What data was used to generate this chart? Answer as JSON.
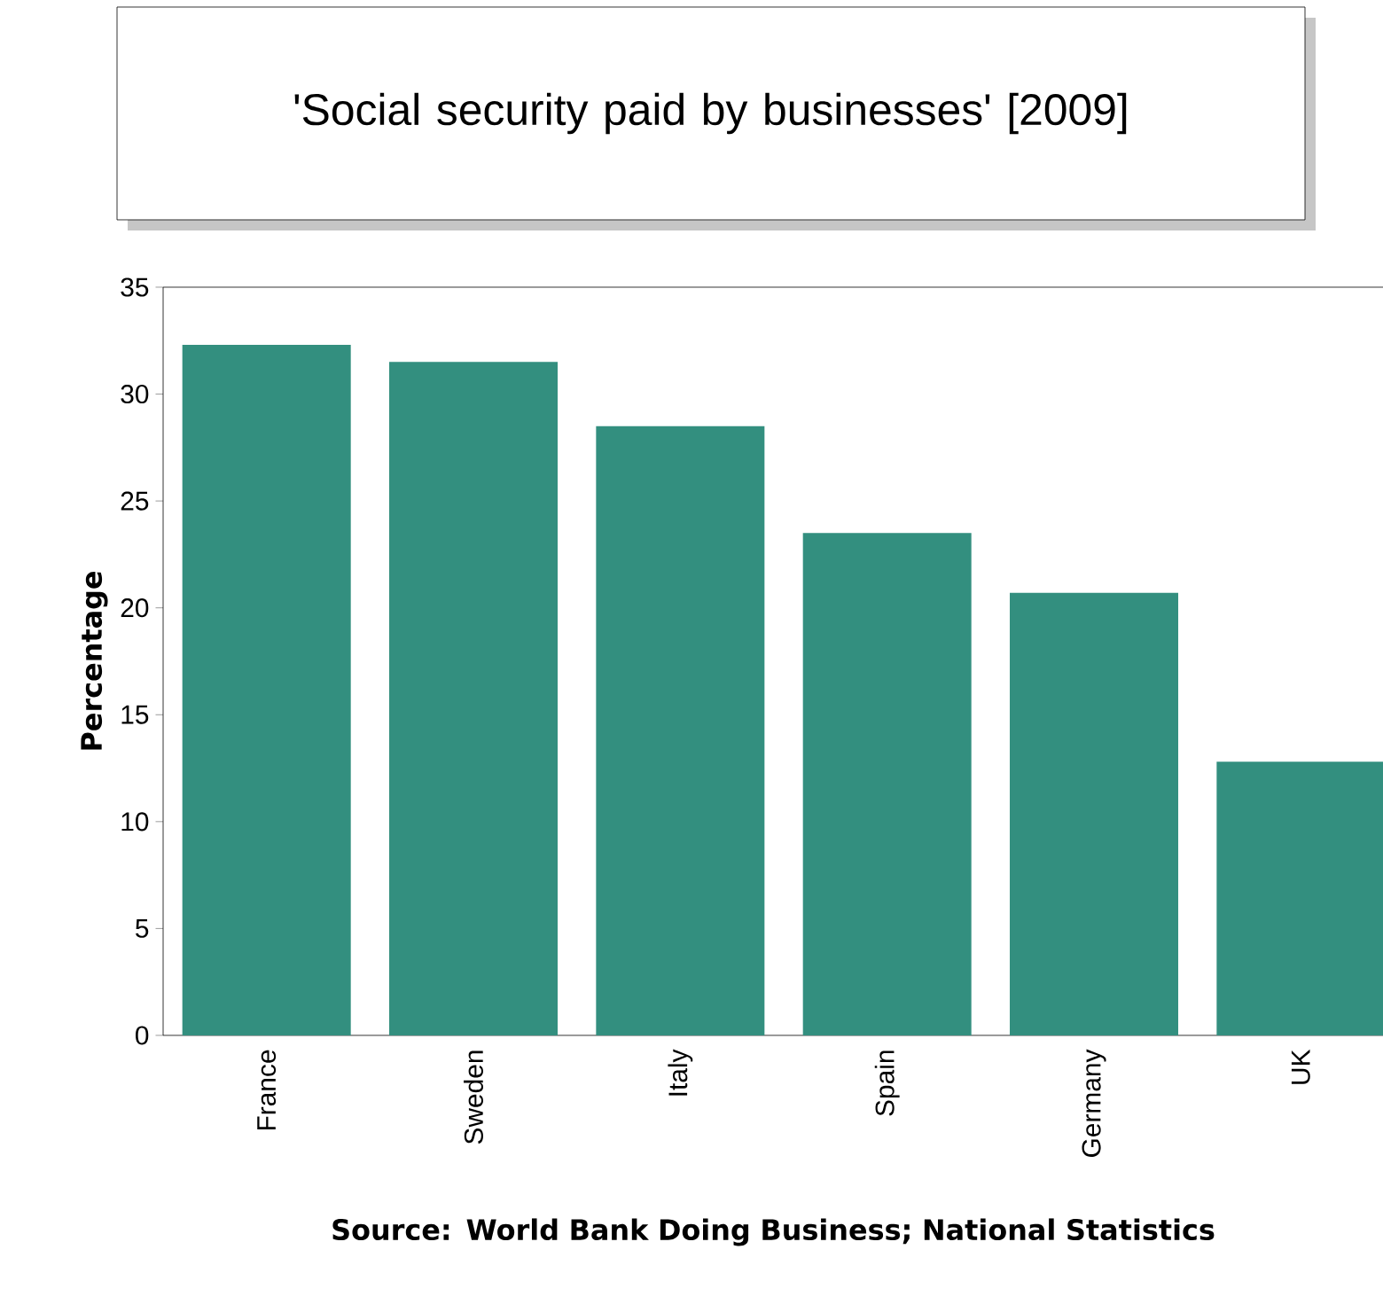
{
  "chart_data": {
    "type": "bar",
    "title": "'Social security paid by businesses' [2009]",
    "categories": [
      "France",
      "Sweden",
      "Italy",
      "Spain",
      "Germany",
      "UK"
    ],
    "values": [
      32.3,
      31.5,
      28.5,
      23.5,
      20.7,
      12.8
    ],
    "color": "#338f7f",
    "ylabel": "Percentage",
    "ylim": [
      0,
      35
    ],
    "yticks": [
      0,
      5,
      10,
      15,
      20,
      25,
      30,
      35
    ],
    "grid": false,
    "annotations": [
      "Source: World Bank Doing Business; National Statistics"
    ]
  }
}
